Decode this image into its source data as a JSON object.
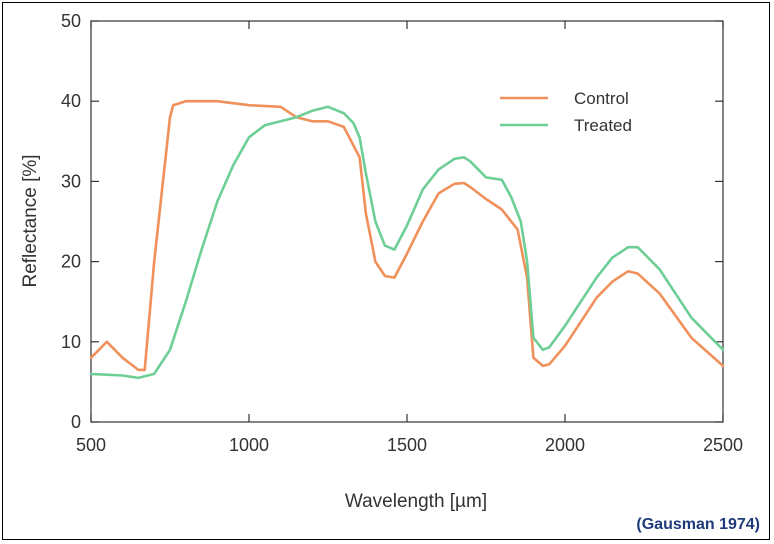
{
  "source_note": "(Gausman 1974)",
  "colors": {
    "control": "#f0905a",
    "treated": "#6dcf95",
    "axis": "#333333",
    "source": "#1f3a7a"
  },
  "chart_data": {
    "type": "line",
    "xlabel": "Wavelength  [µm]",
    "ylabel": "Reflectance  [%]",
    "xlim": [
      500,
      2500
    ],
    "ylim": [
      0,
      50
    ],
    "xticks": [
      500,
      1000,
      1500,
      2000,
      2500
    ],
    "yticks": [
      0,
      10,
      20,
      30,
      40,
      50
    ],
    "grid": false,
    "legend": "top-right",
    "series": [
      {
        "name": "Control",
        "color": "#f0905a",
        "x": [
          500,
          550,
          600,
          650,
          670,
          700,
          750,
          760,
          800,
          900,
          1000,
          1100,
          1150,
          1200,
          1250,
          1300,
          1350,
          1370,
          1400,
          1430,
          1460,
          1500,
          1550,
          1600,
          1650,
          1680,
          1700,
          1750,
          1800,
          1850,
          1880,
          1900,
          1930,
          1950,
          2000,
          2050,
          2100,
          2150,
          2200,
          2230,
          2300,
          2400,
          2500
        ],
        "y": [
          8,
          10,
          8,
          6.5,
          6.5,
          20,
          38,
          39.5,
          40,
          40,
          39.5,
          39.3,
          38,
          37.5,
          37.5,
          36.8,
          33,
          26,
          20,
          18.2,
          18,
          21,
          25,
          28.5,
          29.7,
          29.8,
          29.3,
          27.8,
          26.5,
          24,
          18,
          8,
          7,
          7.2,
          9.5,
          12.5,
          15.5,
          17.5,
          18.8,
          18.5,
          16,
          10.5,
          7
        ]
      },
      {
        "name": "Treated",
        "color": "#6dcf95",
        "x": [
          500,
          600,
          650,
          700,
          750,
          800,
          850,
          900,
          950,
          1000,
          1050,
          1100,
          1150,
          1200,
          1250,
          1300,
          1330,
          1350,
          1370,
          1400,
          1430,
          1460,
          1500,
          1550,
          1600,
          1650,
          1680,
          1700,
          1750,
          1800,
          1830,
          1860,
          1880,
          1900,
          1930,
          1950,
          2000,
          2050,
          2100,
          2150,
          2200,
          2230,
          2300,
          2400,
          2500
        ],
        "y": [
          6,
          5.8,
          5.5,
          6,
          9,
          15,
          21.5,
          27.5,
          32,
          35.5,
          37,
          37.5,
          38,
          38.8,
          39.3,
          38.5,
          37.3,
          35.5,
          31,
          25,
          22,
          21.5,
          24.5,
          29,
          31.5,
          32.8,
          33,
          32.5,
          30.5,
          30.2,
          28,
          25,
          20,
          10.5,
          9,
          9.3,
          12,
          15,
          18,
          20.5,
          21.8,
          21.8,
          19,
          13,
          9
        ]
      }
    ]
  }
}
